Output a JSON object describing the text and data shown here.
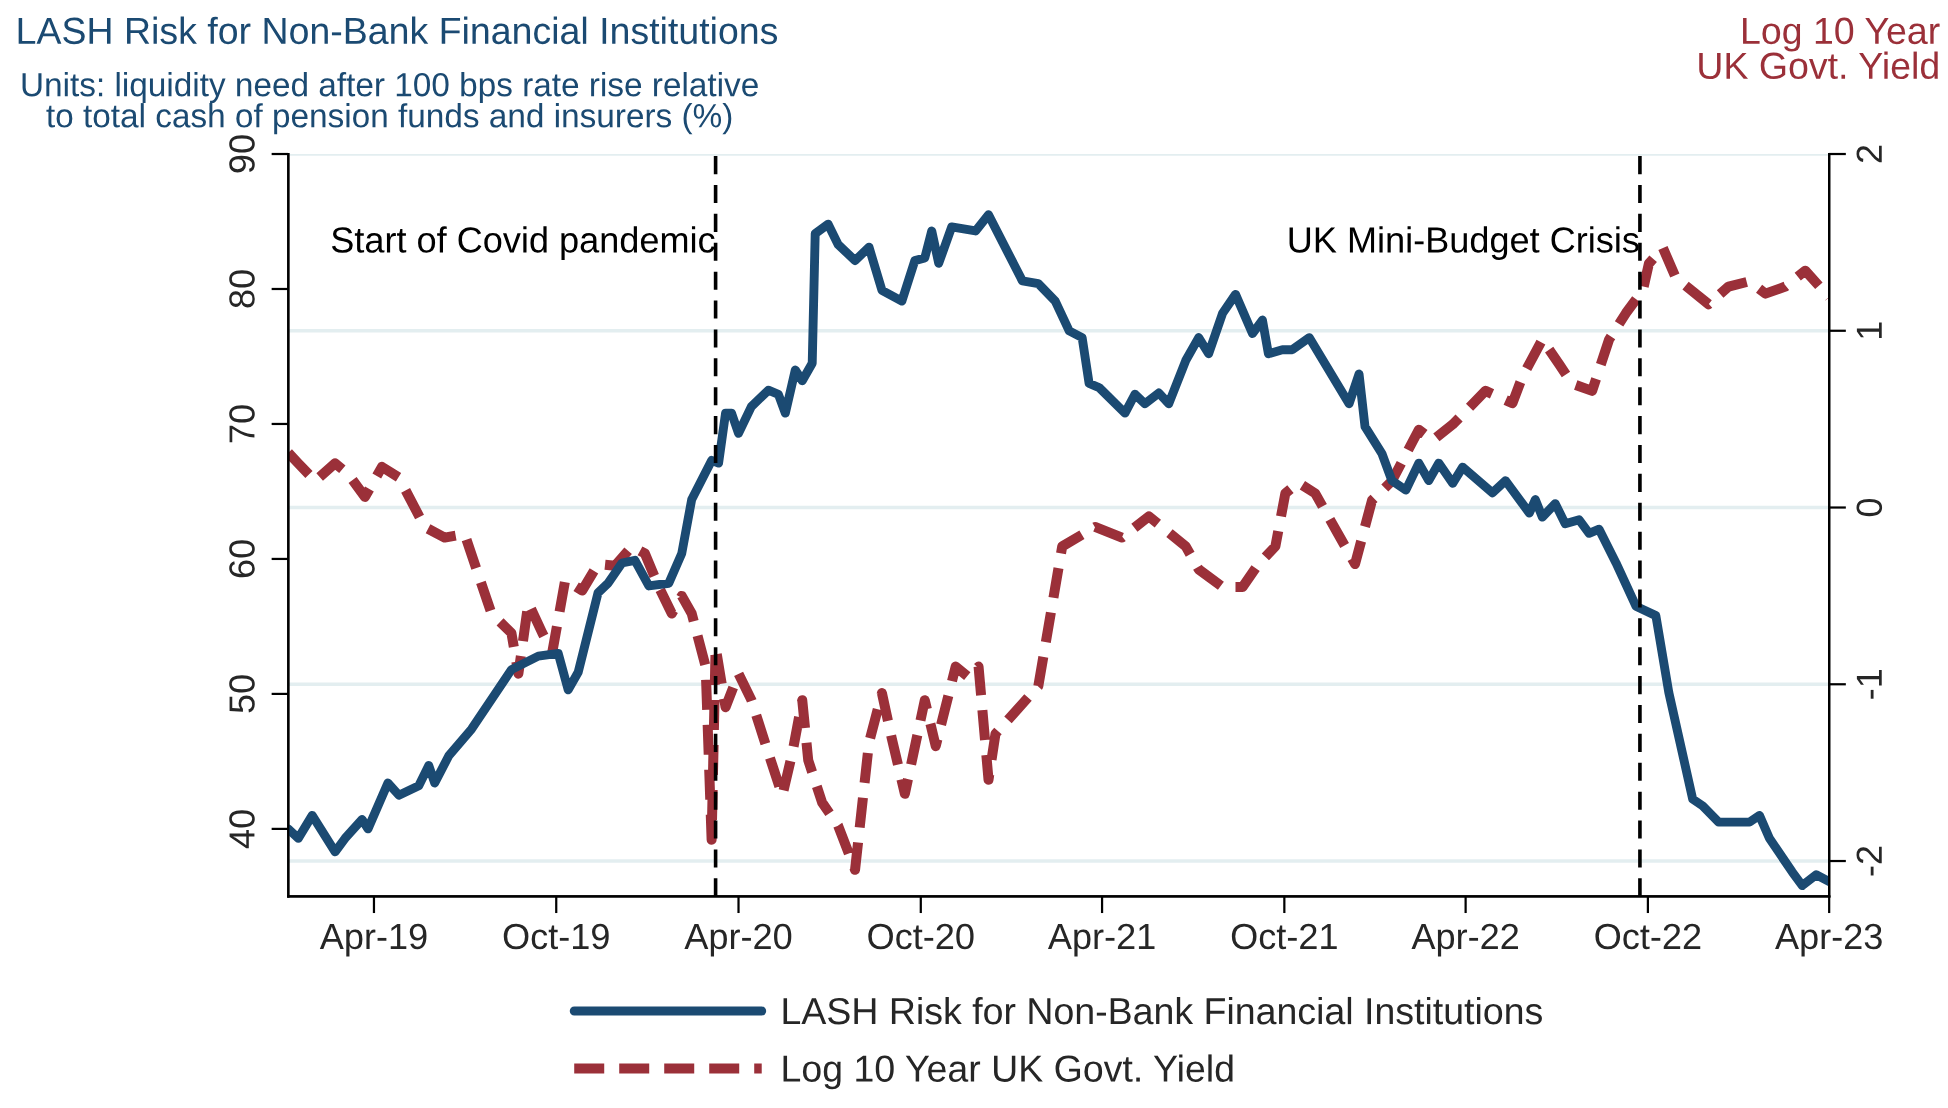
{
  "chart_data": {
    "type": "line",
    "title": "LASH Risk for Non-Bank Financial Institutions",
    "ylabel": "Units: liquidity need after 100 bps rate rise relative\nto total cash of pension funds and insurers (%)",
    "y2label": "Log 10 Year\nUK Govt. Yield",
    "xlim": [
      "2019-01-05",
      "2023-04-01"
    ],
    "xticks": [
      {
        "value": "2019-04-01",
        "label": "Apr-19"
      },
      {
        "value": "2019-10-01",
        "label": "Oct-19"
      },
      {
        "value": "2020-04-01",
        "label": "Apr-20"
      },
      {
        "value": "2020-10-01",
        "label": "Oct-20"
      },
      {
        "value": "2021-04-01",
        "label": "Apr-21"
      },
      {
        "value": "2021-10-01",
        "label": "Oct-21"
      },
      {
        "value": "2022-04-01",
        "label": "Apr-22"
      },
      {
        "value": "2022-10-01",
        "label": "Oct-22"
      },
      {
        "value": "2023-04-01",
        "label": "Apr-23"
      }
    ],
    "ylim": [
      35,
      90
    ],
    "yticks": [
      40,
      50,
      60,
      70,
      80,
      90
    ],
    "y2lim": [
      -2.2,
      2
    ],
    "y2ticks": [
      -2,
      -1,
      0,
      1,
      2
    ],
    "grid": "y",
    "legend": "bottom",
    "ref_lines": [
      {
        "axis": "x",
        "value": "2020-03-09",
        "label": "Start of Covid pandemic",
        "color": "#000000",
        "line_style": "dashed"
      },
      {
        "axis": "x",
        "value": "2022-09-23",
        "label": "UK Mini-Budget Crisis",
        "color": "#000000",
        "line_style": "dashed"
      }
    ],
    "series": [
      {
        "name": "LASH Risk for Non-Bank Financial Institutions",
        "color": "#1b4a72",
        "line_style": "solid",
        "x": [
          "2019-01-05",
          "2019-01-15",
          "2019-01-29",
          "2019-02-21",
          "2019-03-03",
          "2019-03-20",
          "2019-03-26",
          "2019-04-15",
          "2019-04-26",
          "2019-05-16",
          "2019-05-26",
          "2019-06-01",
          "2019-06-15",
          "2019-07-08",
          "2019-08-17",
          "2019-09-13",
          "2019-10-03",
          "2019-10-13",
          "2019-10-23",
          "2019-11-12",
          "2019-11-22",
          "2019-12-06",
          "2019-12-19",
          "2020-01-02",
          "2020-01-22",
          "2020-02-04",
          "2020-02-14",
          "2020-03-05",
          "2020-03-12",
          "2020-03-19",
          "2020-03-25",
          "2020-04-01",
          "2020-04-14",
          "2020-05-01",
          "2020-05-11",
          "2020-05-18",
          "2020-05-28",
          "2020-06-04",
          "2020-06-14",
          "2020-06-17",
          "2020-06-30",
          "2020-07-10",
          "2020-07-27",
          "2020-08-10",
          "2020-08-23",
          "2020-09-12",
          "2020-09-25",
          "2020-10-05",
          "2020-10-12",
          "2020-10-19",
          "2020-11-01",
          "2020-11-25",
          "2020-12-08",
          "2021-01-11",
          "2021-01-27",
          "2021-02-13",
          "2021-02-27",
          "2021-03-12",
          "2021-03-19",
          "2021-03-29",
          "2021-04-24",
          "2021-05-04",
          "2021-05-14",
          "2021-05-28",
          "2021-06-07",
          "2021-06-24",
          "2021-07-07",
          "2021-07-17",
          "2021-07-31",
          "2021-08-13",
          "2021-08-30",
          "2021-09-09",
          "2021-09-15",
          "2021-09-29",
          "2021-10-09",
          "2021-10-26",
          "2021-12-05",
          "2021-12-15",
          "2021-12-21",
          "2022-01-07",
          "2022-01-17",
          "2022-01-31",
          "2022-02-13",
          "2022-02-23",
          "2022-03-05",
          "2022-03-19",
          "2022-03-29",
          "2022-04-28",
          "2022-05-11",
          "2022-06-04",
          "2022-06-10",
          "2022-06-17",
          "2022-06-30",
          "2022-07-10",
          "2022-07-24",
          "2022-08-03",
          "2022-08-13",
          "2022-08-30",
          "2022-09-19",
          "2022-10-09",
          "2022-10-22",
          "2022-11-15",
          "2022-11-25",
          "2022-12-11",
          "2023-01-11",
          "2023-01-21",
          "2023-01-31",
          "2023-02-23",
          "2023-03-05",
          "2023-03-19",
          "2023-04-01"
        ],
        "values": [
          40.0,
          39.3,
          41.0,
          38.3,
          39.3,
          40.7,
          40.0,
          43.4,
          42.5,
          43.2,
          44.7,
          43.4,
          45.4,
          47.4,
          51.8,
          52.8,
          53.0,
          50.3,
          51.6,
          57.5,
          58.2,
          59.7,
          59.9,
          58.0,
          58.2,
          60.4,
          64.4,
          67.3,
          67.1,
          70.8,
          70.8,
          69.3,
          71.3,
          72.5,
          72.2,
          70.8,
          74.0,
          73.2,
          74.5,
          84.1,
          84.8,
          83.3,
          82.1,
          83.1,
          79.9,
          79.1,
          82.1,
          82.3,
          84.3,
          81.9,
          84.6,
          84.3,
          85.5,
          80.6,
          80.4,
          79.1,
          76.9,
          76.4,
          73.0,
          72.7,
          70.8,
          72.2,
          71.5,
          72.3,
          71.5,
          74.7,
          76.4,
          75.2,
          78.2,
          79.6,
          76.7,
          77.7,
          75.2,
          75.5,
          75.5,
          76.4,
          71.5,
          73.7,
          69.8,
          67.8,
          65.8,
          65.1,
          67.1,
          65.8,
          67.1,
          65.6,
          66.8,
          64.9,
          65.8,
          63.4,
          64.4,
          63.1,
          64.1,
          62.6,
          62.9,
          61.9,
          62.2,
          59.7,
          56.5,
          55.8,
          50.1,
          42.2,
          41.7,
          40.5,
          40.5,
          41.0,
          39.3,
          36.8,
          35.8,
          36.6,
          36.1
        ]
      },
      {
        "name": "Log 10 Year UK Govt. Yield",
        "color": "#9b3039",
        "line_style": "dashed",
        "axis": "y2",
        "x": [
          "2019-01-05",
          "2019-01-15",
          "2019-02-01",
          "2019-02-21",
          "2019-03-06",
          "2019-03-23",
          "2019-04-09",
          "2019-04-26",
          "2019-05-22",
          "2019-06-11",
          "2019-07-01",
          "2019-07-28",
          "2019-08-17",
          "2019-08-24",
          "2019-09-03",
          "2019-09-17",
          "2019-09-27",
          "2019-10-10",
          "2019-10-27",
          "2019-11-12",
          "2019-11-29",
          "2019-12-16",
          "2019-12-29",
          "2020-01-12",
          "2020-01-25",
          "2020-02-04",
          "2020-02-14",
          "2020-02-28",
          "2020-03-05",
          "2020-03-09",
          "2020-03-19",
          "2020-04-01",
          "2020-04-14",
          "2020-05-01",
          "2020-05-15",
          "2020-05-25",
          "2020-06-04",
          "2020-06-10",
          "2020-06-24",
          "2020-07-10",
          "2020-07-27",
          "2020-08-10",
          "2020-08-23",
          "2020-09-02",
          "2020-09-15",
          "2020-10-05",
          "2020-10-16",
          "2020-11-05",
          "2020-11-18",
          "2020-11-28",
          "2020-12-08",
          "2020-12-15",
          "2021-01-27",
          "2021-02-20",
          "2021-03-25",
          "2021-04-21",
          "2021-05-18",
          "2021-06-24",
          "2021-07-07",
          "2021-07-31",
          "2021-08-20",
          "2021-09-05",
          "2021-09-22",
          "2021-10-02",
          "2021-10-15",
          "2021-11-01",
          "2021-11-24",
          "2021-12-11",
          "2021-12-28",
          "2022-01-17",
          "2022-02-13",
          "2022-02-27",
          "2022-03-19",
          "2022-04-21",
          "2022-05-18",
          "2022-05-28",
          "2022-06-17",
          "2022-07-04",
          "2022-07-17",
          "2022-08-06",
          "2022-08-23",
          "2022-09-09",
          "2022-09-26",
          "2022-10-02",
          "2022-10-16",
          "2022-10-29",
          "2022-12-01",
          "2022-12-21",
          "2023-01-11",
          "2023-01-27",
          "2023-02-16",
          "2023-03-08",
          "2023-04-01"
        ],
        "values": [
          0.31,
          0.25,
          0.15,
          0.25,
          0.19,
          0.06,
          0.23,
          0.17,
          -0.11,
          -0.17,
          -0.15,
          -0.6,
          -0.71,
          -0.94,
          -0.54,
          -0.71,
          -0.82,
          -0.41,
          -0.47,
          -0.32,
          -0.33,
          -0.22,
          -0.26,
          -0.45,
          -0.6,
          -0.5,
          -0.6,
          -0.9,
          -1.88,
          -0.79,
          -1.13,
          -0.94,
          -1.09,
          -1.39,
          -1.63,
          -1.39,
          -1.09,
          -1.43,
          -1.67,
          -1.8,
          -2.05,
          -1.33,
          -1.05,
          -1.31,
          -1.62,
          -1.09,
          -1.35,
          -0.9,
          -0.96,
          -0.9,
          -1.54,
          -1.28,
          -1.01,
          -0.22,
          -0.11,
          -0.17,
          -0.05,
          -0.22,
          -0.35,
          -0.45,
          -0.45,
          -0.32,
          -0.22,
          0.08,
          0.14,
          0.08,
          -0.15,
          -0.32,
          0.04,
          0.15,
          0.44,
          0.38,
          0.47,
          0.66,
          0.59,
          0.74,
          0.95,
          0.81,
          0.7,
          0.66,
          0.95,
          1.1,
          1.23,
          1.38,
          1.47,
          1.3,
          1.15,
          1.25,
          1.28,
          1.21,
          1.25,
          1.34,
          1.19
        ]
      }
    ]
  }
}
